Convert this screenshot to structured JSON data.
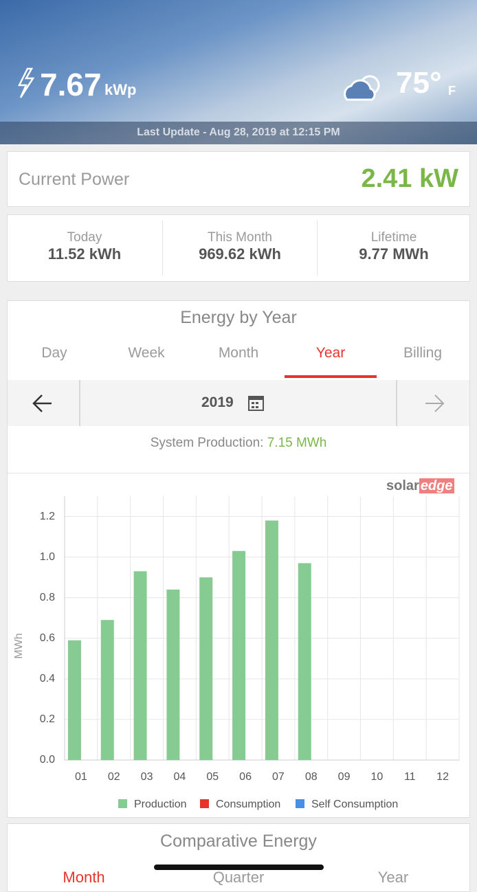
{
  "header": {
    "system_size": "7.67",
    "system_unit": "kWp",
    "temperature": "75°",
    "temperature_unit": "F",
    "last_update": "Last Update - Aug 28, 2019 at 12:15 PM"
  },
  "current_power": {
    "label": "Current Power",
    "value": "2.41 kW"
  },
  "stats": [
    {
      "label": "Today",
      "value": "11.52 kWh"
    },
    {
      "label": "This Month",
      "value": "969.62 kWh"
    },
    {
      "label": "Lifetime",
      "value": "9.77 MWh"
    }
  ],
  "energy": {
    "title": "Energy by Year",
    "tabs": [
      "Day",
      "Week",
      "Month",
      "Year",
      "Billing"
    ],
    "period": "2019",
    "production_label": "System Production:",
    "production_value": "7.15 MWh",
    "logo": [
      "solar",
      "edge"
    ]
  },
  "chart_data": {
    "type": "bar",
    "y_label": "MWh",
    "categories": [
      "01",
      "02",
      "03",
      "04",
      "05",
      "06",
      "07",
      "08",
      "09",
      "10",
      "11",
      "12"
    ],
    "series": [
      {
        "name": "Production",
        "color": "#86cb92",
        "values": [
          0.59,
          0.69,
          0.93,
          0.84,
          0.9,
          1.03,
          1.18,
          0.97,
          null,
          null,
          null,
          null
        ]
      },
      {
        "name": "Consumption",
        "color": "#e8352b",
        "values": [
          null,
          null,
          null,
          null,
          null,
          null,
          null,
          null,
          null,
          null,
          null,
          null
        ]
      },
      {
        "name": "Self Consumption",
        "color": "#4a90e2",
        "values": [
          null,
          null,
          null,
          null,
          null,
          null,
          null,
          null,
          null,
          null,
          null,
          null
        ]
      }
    ],
    "ylim": [
      0,
      1.3
    ],
    "yticks": [
      {
        "value": 0,
        "label": "0.0"
      },
      0.2,
      0.4,
      0.6,
      0.8,
      {
        "value": 1,
        "label": "1.0"
      },
      1.2
    ],
    "grid": true
  },
  "comparative": {
    "title": "Comparative Energy",
    "tabs": [
      "Month",
      "Quarter",
      "Year"
    ]
  }
}
